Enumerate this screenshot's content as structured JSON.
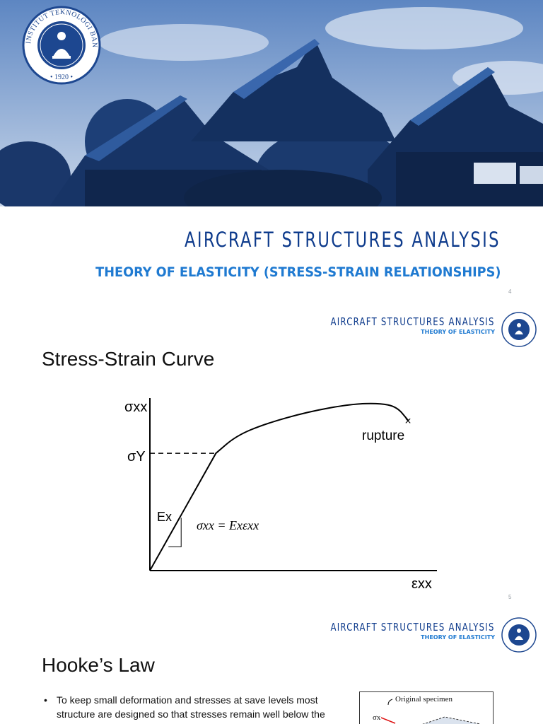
{
  "slide1": {
    "title": "AIRCRAFT STRUCTURES ANALYSIS",
    "subtitle": "THEORY OF ELASTICITY (STRESS-STRAIN RELATIONSHIPS)",
    "page_number": "4",
    "logo": {
      "institution_text": "INSTITUT TEKNOLOGI BANDUNG",
      "year": "1920"
    }
  },
  "slide2": {
    "header_title": "AIRCRAFT STRUCTURES ANALYSIS",
    "header_sub": "THEORY OF ELASTICITY",
    "heading": "Stress-Strain Curve",
    "page_number": "5",
    "chart_data": {
      "type": "line",
      "title": "",
      "ylabel": "σxx",
      "xlabel": "εxx",
      "ylim": [
        0,
        1.0
      ],
      "xlim": [
        0,
        1.0
      ],
      "series": [
        {
          "x": [
            0.0,
            0.23,
            0.3,
            0.4,
            0.55,
            0.7,
            0.8,
            0.86,
            0.9
          ],
          "y": [
            0.0,
            0.68,
            0.78,
            0.85,
            0.92,
            0.965,
            0.97,
            0.95,
            0.87
          ]
        }
      ],
      "yield_marker": {
        "x": 0.23,
        "y": 0.68,
        "label": "σY"
      },
      "rupture_marker": {
        "x": 0.9,
        "y": 0.87,
        "label": "rupture",
        "symbol": "×"
      },
      "slope_label": "Ex",
      "equation": "σxx = Exεxx",
      "grid": false
    }
  },
  "slide3": {
    "header_title": "AIRCRAFT STRUCTURES ANALYSIS",
    "header_sub": "THEORY OF ELASTICITY",
    "heading": "Hooke’s Law",
    "bullet_1": "To keep small deformation and stresses at save levels most structure are designed so that stresses remain well below the",
    "figure_label": "Original specimen",
    "figure_sigma": "σx"
  },
  "colors": {
    "navy": "#0e3b8c",
    "accent_blue": "#1f7ad1",
    "hero_tint": "#2a5ea8"
  }
}
